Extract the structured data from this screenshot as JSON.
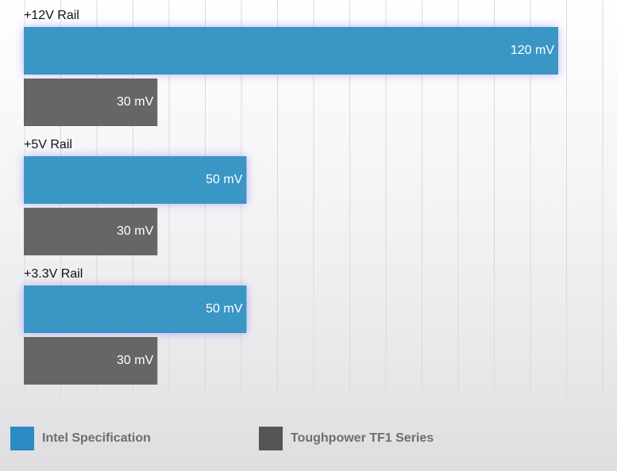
{
  "chart_data": {
    "type": "bar",
    "orientation": "horizontal",
    "categories": [
      "+12V Rail",
      "+5V Rail",
      "+3.3V Rail"
    ],
    "series": [
      {
        "name": "Intel Specification",
        "values": [
          120,
          50,
          50
        ],
        "labels": [
          "120 mV",
          "50 mV",
          "50 mV"
        ],
        "color": "#3a96c4"
      },
      {
        "name": "Toughpower TF1 Series",
        "values": [
          30,
          30,
          30
        ],
        "labels": [
          "30 mV",
          "30 mV",
          "30 mV"
        ],
        "color": "#666666"
      }
    ],
    "xlim": [
      0,
      120
    ],
    "grid": true,
    "legend_position": "bottom"
  },
  "legend": {
    "items": [
      {
        "label": "Intel Specification",
        "color": "#2b8bc3"
      },
      {
        "label": "Toughpower TF1 Series",
        "color": "#555555"
      }
    ]
  }
}
